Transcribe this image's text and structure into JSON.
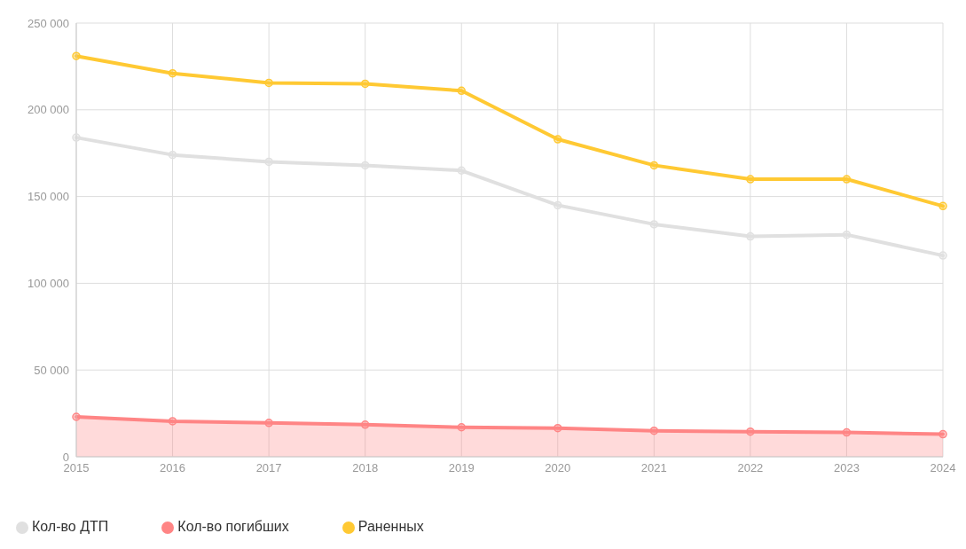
{
  "chart_data": {
    "type": "line",
    "categories": [
      "2015",
      "2016",
      "2017",
      "2018",
      "2019",
      "2020",
      "2021",
      "2022",
      "2023",
      "2024"
    ],
    "series": [
      {
        "name": "Кол-во ДТП",
        "color": "#e0e0e0",
        "values": [
          184000,
          174000,
          170000,
          168000,
          165000,
          145000,
          134000,
          127000,
          128000,
          116000
        ]
      },
      {
        "name": "Кол-во погибших",
        "color": "#ff8585",
        "type": "area",
        "values": [
          23000,
          20500,
          19500,
          18500,
          17000,
          16500,
          15000,
          14500,
          14000,
          13000
        ]
      },
      {
        "name": "Раненных",
        "color": "#ffc933",
        "values": [
          231000,
          221000,
          215500,
          215000,
          211000,
          183000,
          168000,
          160000,
          160000,
          144500
        ]
      }
    ],
    "ylim": [
      0,
      250000
    ],
    "yticks": [
      {
        "value": 0,
        "label": "0"
      },
      {
        "value": 50000,
        "label": "50 000"
      },
      {
        "value": 100000,
        "label": "100 000"
      },
      {
        "value": 150000,
        "label": "150 000"
      },
      {
        "value": 200000,
        "label": "200 000"
      },
      {
        "value": 250000,
        "label": "250 000"
      }
    ],
    "grid": true,
    "legend": "bottom left",
    "marker": "circle",
    "line_style": "solid"
  }
}
